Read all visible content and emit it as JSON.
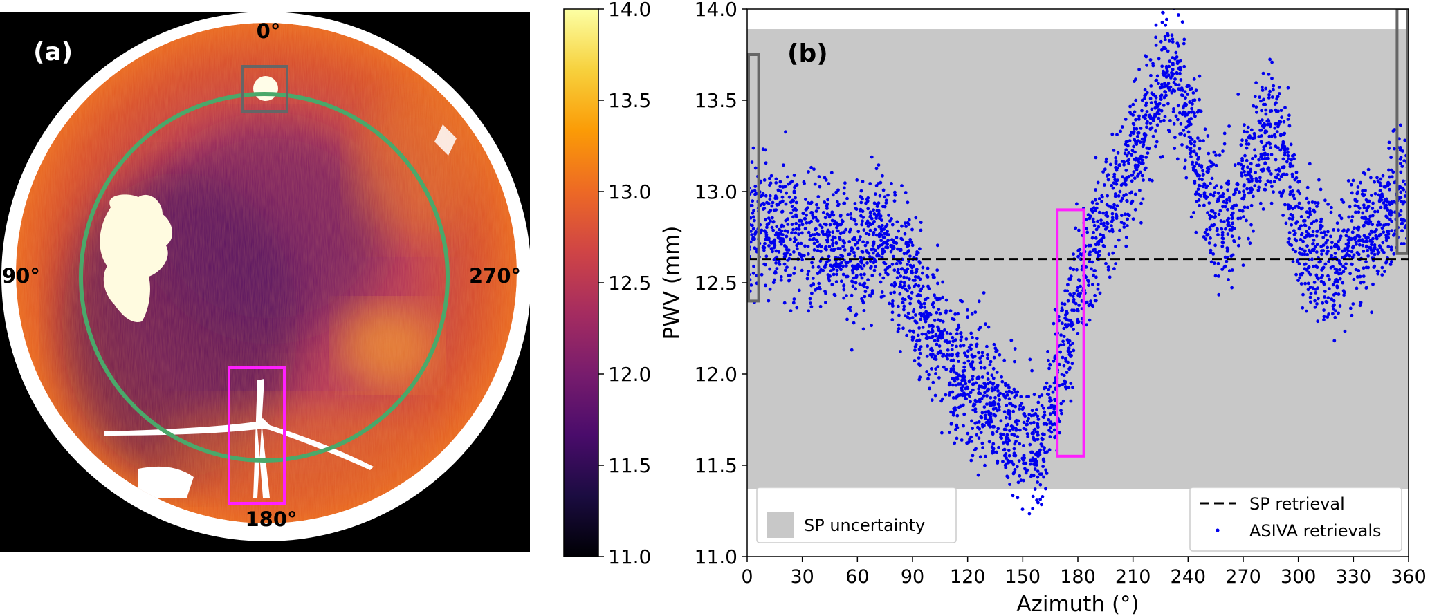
{
  "panel_a": {
    "label": "(a)",
    "direction_labels": {
      "n": "0°",
      "e": "90°",
      "w": "270°",
      "s": "180°"
    },
    "colors": {
      "bg": "#000000",
      "disk": "#ffffff",
      "ring": "#4aa86a",
      "gray_box": "#666666",
      "magenta_box": "#ff1fff"
    },
    "cloud_texture_note_hidden": null
  },
  "colorbar": {
    "range": [
      11.0,
      14.0
    ],
    "ticks": [
      "11.0",
      "11.5",
      "12.0",
      "12.5",
      "13.0",
      "13.5",
      "14.0"
    ],
    "colormap": "inferno",
    "stops": [
      "#000004",
      "#1b0c41",
      "#4a0c6b",
      "#781c6d",
      "#a52c60",
      "#cf4446",
      "#ed6925",
      "#fb9b06",
      "#f7d13d",
      "#fcffa4"
    ]
  },
  "panel_b": {
    "label": "(b)",
    "colors": {
      "points": "#0000ee",
      "band": "#c8c8c8",
      "line": "#000000",
      "gray_box": "#666666",
      "magenta_box": "#ff1fff"
    }
  },
  "chart_data": {
    "type": "scatter",
    "xlabel": "Azimuth (°)",
    "ylabel": "PWV (mm)",
    "xlim": [
      0,
      360
    ],
    "ylim": [
      11.0,
      14.0
    ],
    "xticks": [
      "0",
      "30",
      "60",
      "90",
      "120",
      "150",
      "180",
      "210",
      "240",
      "270",
      "300",
      "330",
      "360"
    ],
    "yticks": [
      "11.0",
      "11.5",
      "12.0",
      "12.5",
      "13.0",
      "13.5",
      "14.0"
    ],
    "grid": false,
    "legend_placement": "bottom-right",
    "legend": {
      "sp_retrieval": "SP retrieval",
      "asiva": "ASIVA retrievals",
      "sp_uncertainty": "SP uncertainty"
    },
    "sp_retrieval_value": 12.63,
    "sp_uncertainty_band": [
      11.37,
      13.89
    ],
    "highlight_boxes": [
      {
        "color": "gray",
        "x": [
          0,
          7
        ],
        "y": [
          12.4,
          13.75
        ]
      },
      {
        "color": "magenta",
        "x": [
          168,
          184
        ],
        "y": [
          11.55,
          12.9
        ]
      },
      {
        "color": "gray",
        "x": [
          353,
          360
        ],
        "y": [
          12.66,
          14.0
        ]
      }
    ],
    "asiva_trend": {
      "azimuth": [
        0,
        10,
        20,
        30,
        40,
        50,
        60,
        70,
        80,
        90,
        100,
        110,
        120,
        130,
        140,
        150,
        160,
        170,
        180,
        190,
        200,
        210,
        220,
        230,
        240,
        250,
        260,
        270,
        280,
        290,
        300,
        310,
        320,
        330,
        340,
        350,
        360
      ],
      "pwv": [
        12.85,
        12.78,
        12.8,
        12.78,
        12.72,
        12.7,
        12.6,
        12.78,
        12.65,
        12.5,
        12.25,
        12.05,
        11.95,
        11.9,
        11.78,
        11.65,
        11.6,
        12.0,
        12.45,
        12.75,
        12.95,
        13.2,
        13.45,
        13.7,
        13.4,
        12.95,
        12.8,
        13.05,
        13.3,
        13.3,
        12.8,
        12.65,
        12.6,
        12.75,
        12.8,
        12.9,
        13.0
      ],
      "spread": 0.18,
      "points_per_degree": 10
    }
  }
}
